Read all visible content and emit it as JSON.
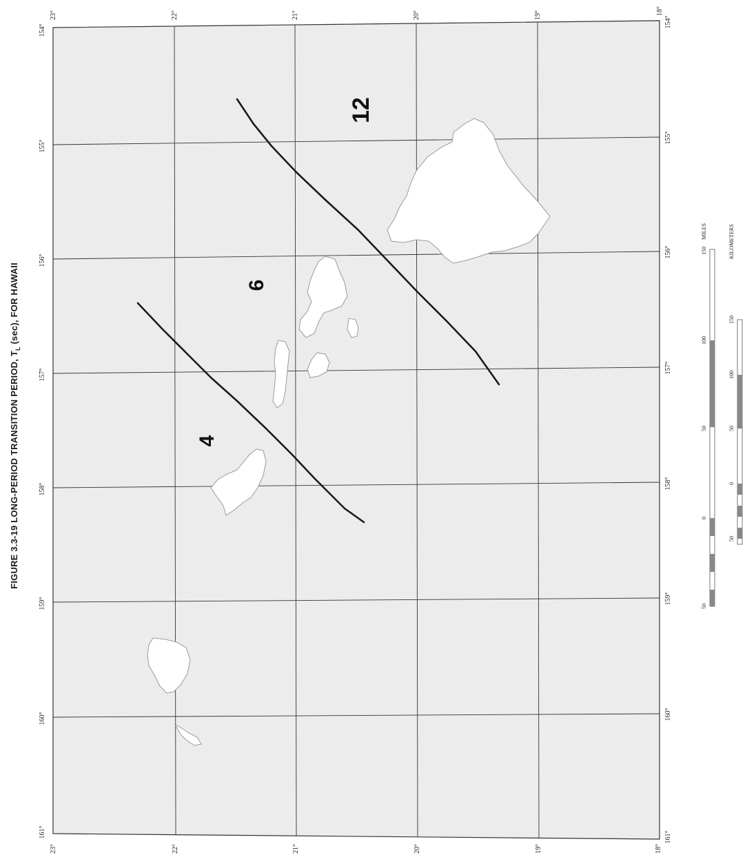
{
  "figure_title": "FIGURE 3.3-19  LONG-PERIOD TRANSITION PERIOD, T",
  "figure_title_subscript": "L",
  "figure_title_rest": " (sec), FOR HAWAII",
  "top_longitudes": [
    "154°",
    "155°",
    "156°",
    "157°",
    "158°",
    "159°",
    "160°",
    "161°"
  ],
  "bottom_longitudes": [
    "154°",
    "155°",
    "156°",
    "157°",
    "158°",
    "159°",
    "160°",
    "161°"
  ],
  "left_latitudes": [
    "23°",
    "22°",
    "21°",
    "20°",
    "19°",
    "18°"
  ],
  "right_latitudes": [
    "23°",
    "22°",
    "21°",
    "20°",
    "19°",
    "18°"
  ],
  "contour_values": [
    "12",
    "6",
    "4"
  ],
  "scale_bars": {
    "miles": {
      "unit": "MILES",
      "ticks": [
        "50",
        "0",
        "50",
        "100",
        "150"
      ]
    },
    "kilometers": {
      "unit": "KILOMETERS",
      "ticks": [
        "50",
        "0",
        "50",
        "100",
        "150"
      ]
    }
  },
  "colors": {
    "sea": "#ececec",
    "land": "#ffffff",
    "coast": "#9a9a9a",
    "grid": "#333333",
    "contour": "#1a1a1a"
  }
}
